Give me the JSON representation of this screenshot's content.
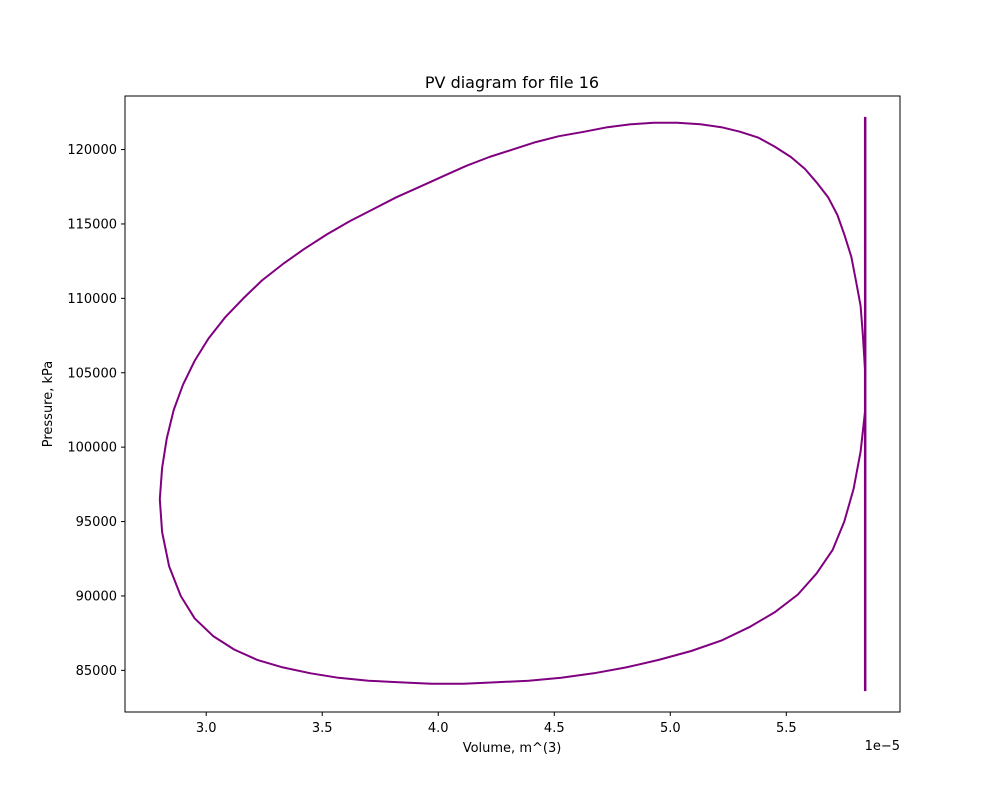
{
  "chart_data": {
    "type": "line",
    "title": "PV diagram for file 16",
    "xlabel": "Volume, m^(3)",
    "ylabel": "Pressure, kPa",
    "x_offset_text": "1e−5",
    "x_scale_note": "x tick values are multiplied by 1e-5",
    "xlim": [
      2.65,
      5.99
    ],
    "ylim": [
      82200,
      123600
    ],
    "xticks": [
      {
        "value": 3.0,
        "label": "3.0"
      },
      {
        "value": 3.5,
        "label": "3.5"
      },
      {
        "value": 4.0,
        "label": "4.0"
      },
      {
        "value": 4.5,
        "label": "4.5"
      },
      {
        "value": 5.0,
        "label": "5.0"
      },
      {
        "value": 5.5,
        "label": "5.5"
      }
    ],
    "yticks": [
      {
        "value": 85000,
        "label": "85000"
      },
      {
        "value": 90000,
        "label": "90000"
      },
      {
        "value": 95000,
        "label": "95000"
      },
      {
        "value": 100000,
        "label": "100000"
      },
      {
        "value": 105000,
        "label": "105000"
      },
      {
        "value": 110000,
        "label": "110000"
      },
      {
        "value": 115000,
        "label": "115000"
      },
      {
        "value": 120000,
        "label": "120000"
      }
    ],
    "grid": false,
    "legend": "none",
    "line_color": "#800080",
    "series": [
      {
        "x": [
          5.84,
          5.83,
          5.82,
          5.8,
          5.78,
          5.75,
          5.72,
          5.68,
          5.63,
          5.58,
          5.52,
          5.45,
          5.38,
          5.3,
          5.22,
          5.13,
          5.03,
          4.93,
          4.83,
          4.73,
          4.63,
          4.52,
          4.42,
          4.32,
          4.22,
          4.12,
          4.02,
          3.92,
          3.82,
          3.72,
          3.62,
          3.52,
          3.42,
          3.33,
          3.24,
          3.16,
          3.08,
          3.01,
          2.95,
          2.9,
          2.86,
          2.83,
          2.81,
          2.8,
          2.81,
          2.84,
          2.89,
          2.95,
          3.03,
          3.12,
          3.22,
          3.33,
          3.45,
          3.57,
          3.7,
          3.83,
          3.97,
          4.11,
          4.25,
          4.39,
          4.53,
          4.67,
          4.81,
          4.95,
          5.09,
          5.22,
          5.34,
          5.45,
          5.55,
          5.63,
          5.7,
          5.75,
          5.79,
          5.82,
          5.84
        ],
        "y": [
          105000,
          107500,
          109500,
          111200,
          112800,
          114300,
          115600,
          116800,
          117800,
          118700,
          119500,
          120200,
          120800,
          121200,
          121500,
          121700,
          121800,
          121800,
          121700,
          121500,
          121200,
          120900,
          120500,
          120000,
          119500,
          118900,
          118200,
          117500,
          116800,
          116000,
          115200,
          114300,
          113300,
          112300,
          111200,
          110000,
          108700,
          107300,
          105800,
          104200,
          102500,
          100600,
          98600,
          96500,
          94300,
          92000,
          90000,
          88500,
          87300,
          86400,
          85700,
          85200,
          84800,
          84500,
          84300,
          84200,
          84100,
          84100,
          84200,
          84300,
          84500,
          84800,
          85200,
          85700,
          86300,
          87000,
          87900,
          88900,
          90100,
          91500,
          93100,
          95000,
          97200,
          99700,
          102500
        ]
      }
    ],
    "vertical_segment": {
      "x": 5.84,
      "y_min": 83600,
      "y_max": 122200
    }
  }
}
